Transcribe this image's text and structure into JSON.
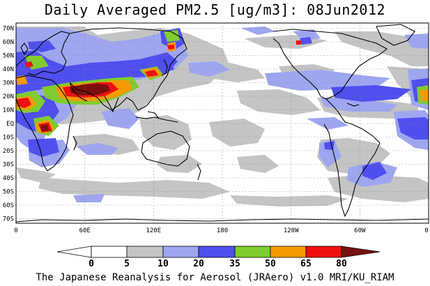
{
  "title": "Daily Averaged PM2.5 [ug/m3]: 08Jun2012",
  "credit": "The Japanese Reanalysis for Aerosol (JRAero) v1.0 MRI/KU_RIAM",
  "lat_labels": [
    "70N",
    "60N",
    "50N",
    "40N",
    "30N",
    "20N",
    "10N",
    "EQ",
    "10S",
    "20S",
    "30S",
    "40S",
    "50S",
    "60S",
    "70S"
  ],
  "lon_labels": [
    "0",
    "60E",
    "120E",
    "180",
    "120W",
    "60W",
    "0"
  ],
  "colorbar": {
    "levels": [
      "0",
      "5",
      "10",
      "20",
      "35",
      "50",
      "65",
      "80"
    ],
    "colors": [
      "#ffffff",
      "#c4c4c4",
      "#9ea6f0",
      "#4f4fef",
      "#80cc30",
      "#f59a00",
      "#ee1010",
      "#7a0f0f"
    ]
  },
  "layers": {
    "c1": "#c4c4c4",
    "c2": "#9ea6f0",
    "c3": "#4f4fef",
    "c4": "#80cc30",
    "c5": "#f59a00",
    "c6": "#ee1010",
    "c7": "#7a0f0f"
  }
}
